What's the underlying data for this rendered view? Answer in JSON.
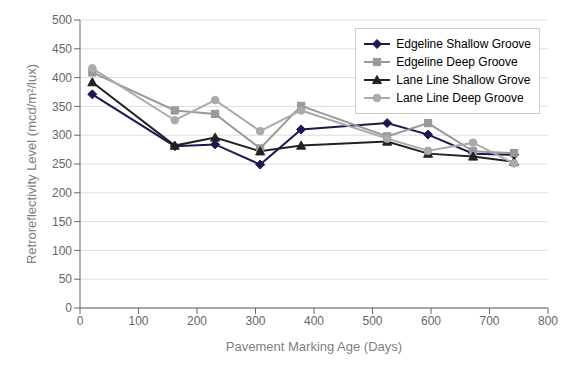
{
  "chart_data": {
    "type": "line",
    "title": "",
    "x_label": "Pavement Marking Age (Days)",
    "y_label": "Retroreflectivity Level (mcd/m²/lux)",
    "x": [
      21,
      162,
      231,
      308,
      378,
      525,
      595,
      672,
      742
    ],
    "xlim": [
      0,
      800
    ],
    "ylim": [
      0,
      500
    ],
    "xticks": [
      0,
      100,
      200,
      300,
      400,
      500,
      600,
      700,
      800
    ],
    "yticks": [
      0,
      50,
      100,
      150,
      200,
      250,
      300,
      350,
      400,
      450,
      500
    ],
    "grid": true,
    "legend": "upper right",
    "series": [
      {
        "name": "Edgeline Shallow Groove",
        "color": "#1a1a50",
        "marker": "diamond",
        "line_style": "solid",
        "values": [
          371,
          281,
          284,
          249,
          310,
          321,
          301,
          268,
          266
        ]
      },
      {
        "name": "Edgeline Deep Groove",
        "color": "#999999",
        "marker": "square",
        "line_style": "solid",
        "values": [
          409,
          343,
          337,
          277,
          351,
          298,
          321,
          272,
          269
        ]
      },
      {
        "name": "Lane Line Shallow Grove",
        "color": "#222222",
        "marker": "triangle",
        "line_style": "solid",
        "values": [
          392,
          282,
          296,
          272,
          282,
          289,
          268,
          263,
          254
        ]
      },
      {
        "name": "Lane Line Deep Groove",
        "color": "#aaaaaa",
        "marker": "circle",
        "line_style": "solid",
        "values": [
          416,
          326,
          361,
          307,
          343,
          294,
          273,
          287,
          251
        ]
      }
    ]
  }
}
